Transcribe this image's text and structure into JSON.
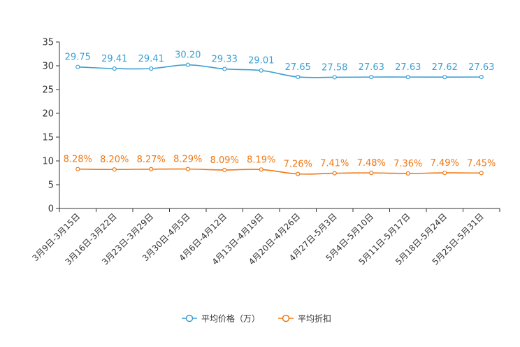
{
  "chart_data": {
    "type": "line",
    "categories": [
      "3月9日-3月15日",
      "3月16日-3月22日",
      "3月23日-3月29日",
      "3月30日-4月5日",
      "4月6日-4月12日",
      "4月13日-4月19日",
      "4月20日-4月26日",
      "4月27日-5月3日",
      "5月4日-5月10日",
      "5月11日-5月17日",
      "5月18日-5月24日",
      "5月25日-5月31日"
    ],
    "series": [
      {
        "name": "平均价格（万）",
        "color": "#3ca0d2",
        "values": [
          29.75,
          29.41,
          29.41,
          30.2,
          29.33,
          29.01,
          27.65,
          27.58,
          27.63,
          27.63,
          27.62,
          27.63
        ],
        "labels": [
          "29.75",
          "29.41",
          "29.41",
          "30.20",
          "29.33",
          "29.01",
          "27.65",
          "27.58",
          "27.63",
          "27.63",
          "27.62",
          "27.63"
        ]
      },
      {
        "name": "平均折扣",
        "color": "#f07814",
        "values": [
          8.28,
          8.2,
          8.27,
          8.29,
          8.09,
          8.19,
          7.26,
          7.41,
          7.48,
          7.36,
          7.49,
          7.45
        ],
        "labels": [
          "8.28%",
          "8.20%",
          "8.27%",
          "8.29%",
          "8.09%",
          "8.19%",
          "7.26%",
          "7.41%",
          "7.48%",
          "7.36%",
          "7.49%",
          "7.45%"
        ]
      }
    ],
    "ylim": [
      0,
      35
    ],
    "yticks": [
      "0",
      "5",
      "10",
      "15",
      "20",
      "25",
      "30",
      "35"
    ],
    "legend_position": "bottom-center",
    "axis_color": "#333333"
  }
}
